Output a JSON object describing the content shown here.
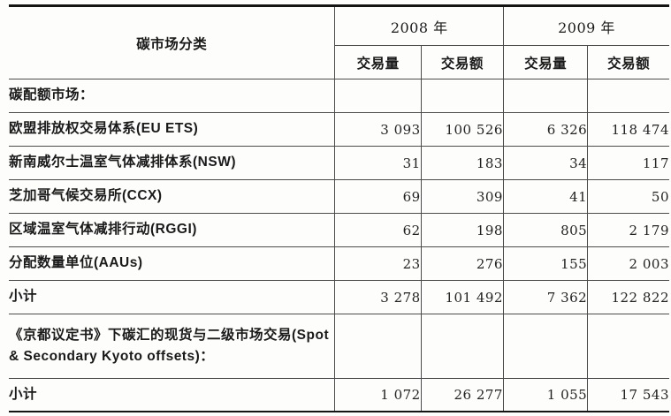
{
  "table": {
    "category_header": "碳市场分类",
    "year_groups": {
      "y2008": "2008 年",
      "y2009": "2009 年"
    },
    "subheaders": [
      "交易量",
      "交易额",
      "交易量",
      "交易额"
    ],
    "rows": [
      {
        "label": "碳配额市场：",
        "values": [
          "",
          "",
          "",
          ""
        ]
      },
      {
        "label": "欧盟排放权交易体系(EU ETS)",
        "values": [
          "3 093",
          "100 526",
          "6 326",
          "118 474"
        ]
      },
      {
        "label": "新南威尔士温室气体减排体系(NSW)",
        "values": [
          "31",
          "183",
          "34",
          "117"
        ]
      },
      {
        "label": "芝加哥气候交易所(CCX)",
        "values": [
          "69",
          "309",
          "41",
          "50"
        ]
      },
      {
        "label": "区域温室气体减排行动(RGGI)",
        "values": [
          "62",
          "198",
          "805",
          "2 179"
        ]
      },
      {
        "label": "分配数量单位(AAUs)",
        "values": [
          "23",
          "276",
          "155",
          "2 003"
        ]
      },
      {
        "label": "小计",
        "values": [
          "3 278",
          "101 492",
          "7 362",
          "122 822"
        ]
      },
      {
        "label": "《京都议定书》下碳汇的现货与二级市场交易(Spot & Secondary Kyoto offsets)：",
        "values": [
          "",
          "",
          "",
          ""
        ]
      },
      {
        "label": "小计",
        "values": [
          "1 072",
          "26 277",
          "1 055",
          "17 543"
        ]
      }
    ]
  },
  "colors": {
    "background": "#fdfdfc",
    "text": "#1a1a1a",
    "grid_line": "#4c4c4c",
    "outer_rule": "#141414"
  }
}
